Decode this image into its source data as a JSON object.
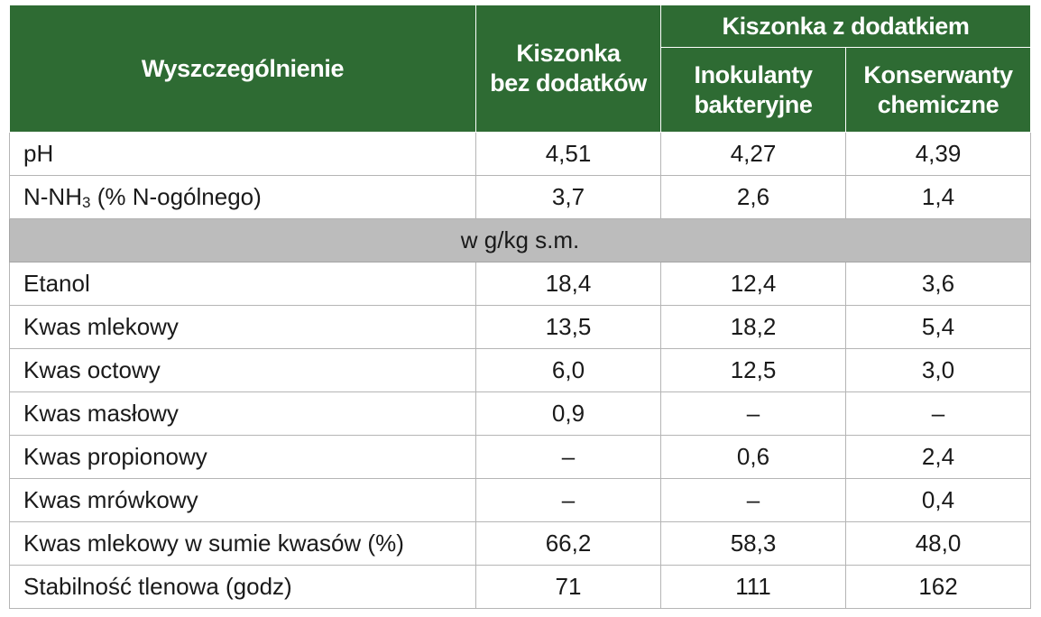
{
  "table": {
    "header": {
      "col1": "Wyszczególnienie",
      "col2_line1": "Kiszonka",
      "col2_line2": "bez dodatków",
      "group": "Kiszonka z dodatkiem",
      "col3_line1": "Inokulanty",
      "col3_line2": "bakteryjne",
      "col4_line1": "Konserwanty",
      "col4_line2": "chemiczne"
    },
    "rows_top": [
      {
        "label": "pH",
        "v1": "4,51",
        "v2": "4,27",
        "v3": "4,39"
      }
    ],
    "nnh3_row": {
      "label_pre": "N-NH",
      "label_sub": "3",
      "label_post": " (% N-ogólnego)",
      "v1": "3,7",
      "v2": "2,6",
      "v3": "1,4"
    },
    "section_label": "w g/kg s.m.",
    "rows": [
      {
        "label": "Etanol",
        "v1": "18,4",
        "v2": "12,4",
        "v3": "3,6"
      },
      {
        "label": "Kwas mlekowy",
        "v1": "13,5",
        "v2": "18,2",
        "v3": "5,4"
      },
      {
        "label": "Kwas octowy",
        "v1": "6,0",
        "v2": "12,5",
        "v3": "3,0"
      },
      {
        "label": "Kwas masłowy",
        "v1": "0,9",
        "v2": "–",
        "v3": "–"
      },
      {
        "label": "Kwas propionowy",
        "v1": "–",
        "v2": "0,6",
        "v3": "2,4"
      },
      {
        "label": "Kwas mrówkowy",
        "v1": "–",
        "v2": "–",
        "v3": "0,4"
      },
      {
        "label": "Kwas mlekowy w sumie kwasów (%)",
        "v1": "66,2",
        "v2": "58,3",
        "v3": "48,0"
      },
      {
        "label": "Stabilność tlenowa (godz)",
        "v1": "71",
        "v2": "111",
        "v3": "162"
      }
    ]
  },
  "colors": {
    "header_green": "#2e6b33",
    "section_gray": "#bcbcbc"
  }
}
